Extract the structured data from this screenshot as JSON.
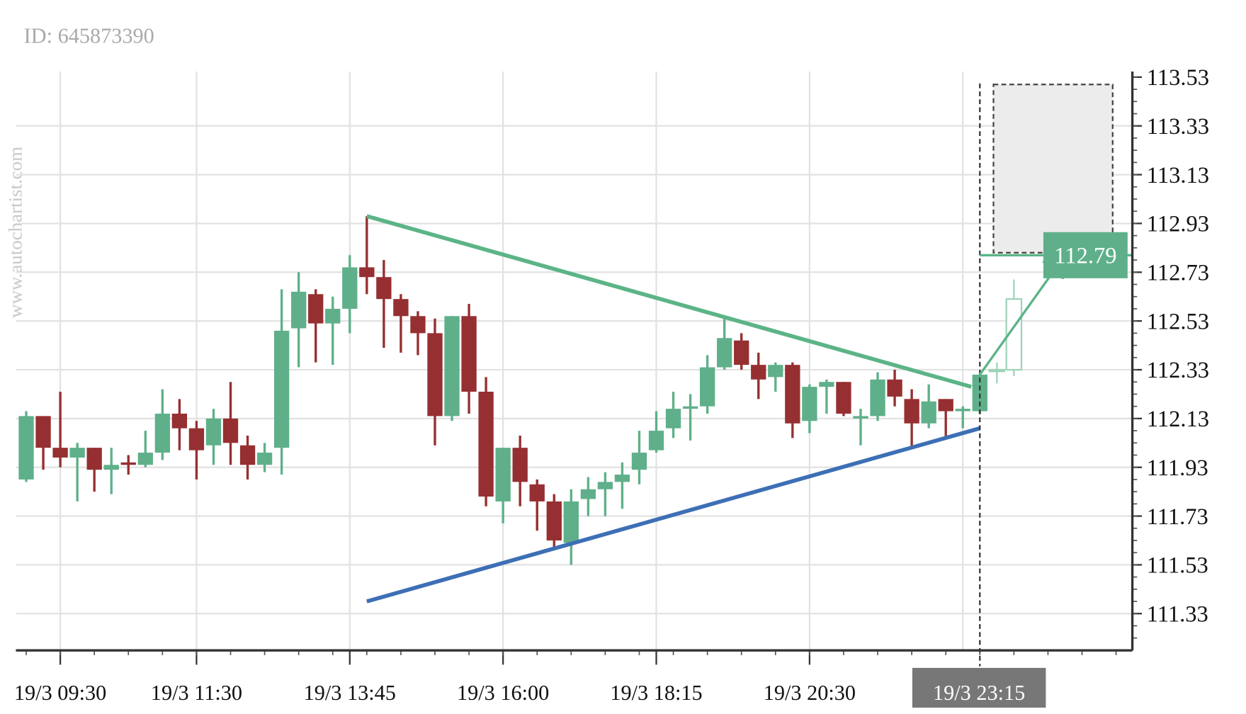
{
  "header": {
    "id_label": "ID: 645873390"
  },
  "watermark": "www.autochartist.com",
  "colors": {
    "bull": "#5fb08a",
    "bear": "#962f31",
    "resistance": "#5cb487",
    "support": "#3d6fb5",
    "target_zone": "#ececec",
    "current_label_bg": "#777777"
  },
  "chart_data": {
    "type": "candlestick",
    "title": "",
    "ylim": [
      111.18,
      113.55
    ],
    "grid": true,
    "y_ticks": [
      "113.53",
      "113.33",
      "113.13",
      "112.93",
      "112.73",
      "112.53",
      "112.33",
      "112.13",
      "111.93",
      "111.73",
      "111.53",
      "111.33"
    ],
    "x_ticks": [
      {
        "label": "19/3 09:30",
        "candle": 3
      },
      {
        "label": "19/3 11:30",
        "candle": 11
      },
      {
        "label": "19/3 13:45",
        "candle": 20
      },
      {
        "label": "19/3 16:00",
        "candle": 29
      },
      {
        "label": "19/3 18:15",
        "candle": 38
      },
      {
        "label": "19/3 20:30",
        "candle": 47
      }
    ],
    "current_time_label": "19/3 23:15",
    "candles_ohlc": [
      [
        111.88,
        112.16,
        111.87,
        112.14
      ],
      [
        112.14,
        112.14,
        111.92,
        112.01
      ],
      [
        112.01,
        112.24,
        111.93,
        111.97
      ],
      [
        111.97,
        112.03,
        111.79,
        112.01
      ],
      [
        112.01,
        112.01,
        111.83,
        111.92
      ],
      [
        111.92,
        112.01,
        111.82,
        111.94
      ],
      [
        111.95,
        111.98,
        111.9,
        111.94
      ],
      [
        111.94,
        112.08,
        111.93,
        111.99
      ],
      [
        111.99,
        112.25,
        111.96,
        112.15
      ],
      [
        112.15,
        112.21,
        112.0,
        112.09
      ],
      [
        112.09,
        112.12,
        111.88,
        112.0
      ],
      [
        112.02,
        112.17,
        111.94,
        112.13
      ],
      [
        112.13,
        112.28,
        111.94,
        112.03
      ],
      [
        112.02,
        112.06,
        111.88,
        111.94
      ],
      [
        111.94,
        112.03,
        111.91,
        111.99
      ],
      [
        112.01,
        112.66,
        111.9,
        112.49
      ],
      [
        112.5,
        112.73,
        112.34,
        112.65
      ],
      [
        112.64,
        112.66,
        112.36,
        112.52
      ],
      [
        112.52,
        112.63,
        112.35,
        112.58
      ],
      [
        112.58,
        112.8,
        112.48,
        112.75
      ],
      [
        112.75,
        112.96,
        112.64,
        112.71
      ],
      [
        112.71,
        112.78,
        112.42,
        112.62
      ],
      [
        112.62,
        112.64,
        112.4,
        112.55
      ],
      [
        112.55,
        112.57,
        112.39,
        112.48
      ],
      [
        112.48,
        112.54,
        112.02,
        112.14
      ],
      [
        112.14,
        112.55,
        112.12,
        112.55
      ],
      [
        112.55,
        112.6,
        112.15,
        112.24
      ],
      [
        112.24,
        112.3,
        111.77,
        111.81
      ],
      [
        111.79,
        112.01,
        111.7,
        112.01
      ],
      [
        112.01,
        112.06,
        111.77,
        111.87
      ],
      [
        111.86,
        111.88,
        111.67,
        111.79
      ],
      [
        111.79,
        111.82,
        111.59,
        111.63
      ],
      [
        111.62,
        111.84,
        111.53,
        111.79
      ],
      [
        111.8,
        111.89,
        111.73,
        111.84
      ],
      [
        111.84,
        111.91,
        111.73,
        111.87
      ],
      [
        111.87,
        111.95,
        111.76,
        111.9
      ],
      [
        111.92,
        112.08,
        111.86,
        111.99
      ],
      [
        112.0,
        112.16,
        111.99,
        112.08
      ],
      [
        112.09,
        112.24,
        112.05,
        112.17
      ],
      [
        112.17,
        112.23,
        112.04,
        112.18
      ],
      [
        112.18,
        112.39,
        112.15,
        112.34
      ],
      [
        112.34,
        112.54,
        112.33,
        112.46
      ],
      [
        112.45,
        112.48,
        112.33,
        112.35
      ],
      [
        112.35,
        112.4,
        112.21,
        112.29
      ],
      [
        112.3,
        112.36,
        112.24,
        112.35
      ],
      [
        112.35,
        112.36,
        112.05,
        112.11
      ],
      [
        112.12,
        112.27,
        112.07,
        112.26
      ],
      [
        112.26,
        112.29,
        112.15,
        112.28
      ],
      [
        112.28,
        112.28,
        112.14,
        112.15
      ],
      [
        112.13,
        112.17,
        112.02,
        112.14
      ],
      [
        112.14,
        112.32,
        112.12,
        112.29
      ],
      [
        112.29,
        112.33,
        112.18,
        112.22
      ],
      [
        112.21,
        112.25,
        112.01,
        112.11
      ],
      [
        112.11,
        112.27,
        112.09,
        112.2
      ],
      [
        112.21,
        112.21,
        112.05,
        112.16
      ],
      [
        112.16,
        112.18,
        112.09,
        112.17
      ],
      [
        112.16,
        112.31,
        112.15,
        112.31
      ]
    ],
    "forecast_candles_ohlc": [
      [
        112.33,
        112.36,
        112.3,
        112.33
      ],
      [
        112.33,
        112.7,
        112.33,
        112.62
      ]
    ],
    "resistance_line": [
      {
        "candle": 21,
        "price": 112.96
      },
      {
        "candle": 56.5,
        "price": 112.26
      }
    ],
    "support_line": [
      {
        "candle": 21,
        "price": 111.38
      },
      {
        "candle": 57,
        "price": 112.09
      }
    ],
    "forecast_arrow": [
      {
        "candle": 57,
        "price": 112.31
      },
      {
        "candle": 62,
        "price": 112.8
      }
    ],
    "target_zone": {
      "from_candle": 57.8,
      "to_candle": 64.8,
      "price_low": 112.81,
      "price_high": 113.5
    },
    "target_price": "112.79"
  }
}
